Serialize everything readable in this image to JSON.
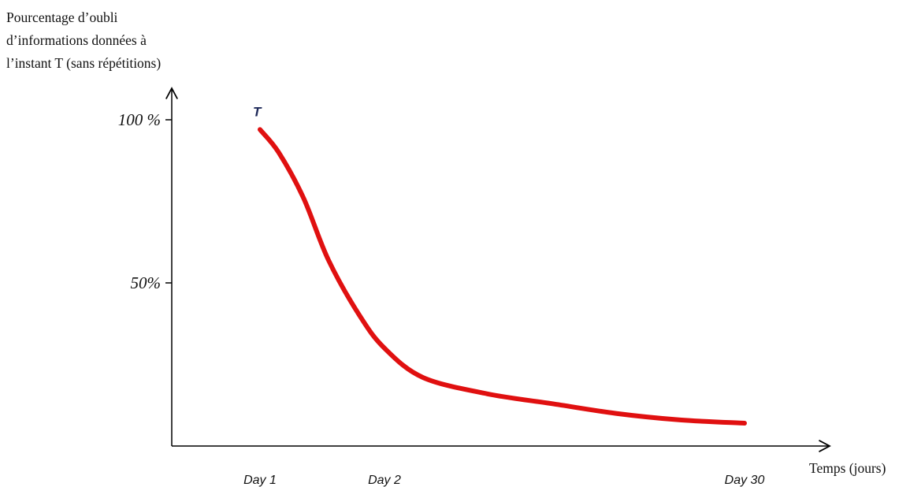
{
  "chart_data": {
    "type": "line",
    "title": "",
    "ylabel_lines": [
      "Pourcentage d’oubli",
      "d’informations données à",
      "l’instant T (sans répétitions)"
    ],
    "xlabel": "Temps (jours)",
    "annotation": "T",
    "y_ticks": [
      {
        "value": 100,
        "label": "100 %"
      },
      {
        "value": 50,
        "label": "50%"
      }
    ],
    "x_ticks": [
      {
        "value": 1,
        "label": "Day 1"
      },
      {
        "value": 2,
        "label": "Day 2"
      },
      {
        "value": 30,
        "label": "Day 30"
      }
    ],
    "ylim": [
      0,
      100
    ],
    "grid": false,
    "series": [
      {
        "color": "#e01010",
        "points": [
          {
            "x": 1,
            "y": 97
          },
          {
            "x": 1.15,
            "y": 90
          },
          {
            "x": 1.35,
            "y": 76
          },
          {
            "x": 1.55,
            "y": 57
          },
          {
            "x": 1.8,
            "y": 40
          },
          {
            "x": 2,
            "y": 30
          },
          {
            "x": 5,
            "y": 21
          },
          {
            "x": 10,
            "y": 16
          },
          {
            "x": 15,
            "y": 13
          },
          {
            "x": 20,
            "y": 10
          },
          {
            "x": 25,
            "y": 8
          },
          {
            "x": 30,
            "y": 7
          }
        ]
      }
    ]
  }
}
